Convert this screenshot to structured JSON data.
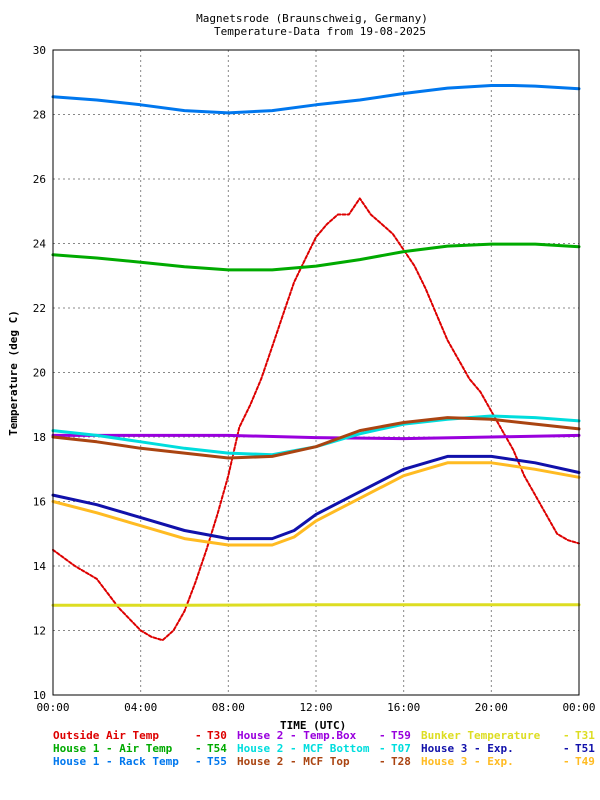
{
  "chart_data": {
    "type": "line",
    "title": "Magnetsrode (Braunschweig, Germany)",
    "subtitle": "Temperature-Data from 19-08-2025",
    "xlabel": "TIME (UTC)",
    "ylabel": "Temperature (deg C)",
    "xlim": [
      0,
      24
    ],
    "ylim": [
      10,
      30
    ],
    "x_ticks": [
      "00:00",
      "04:00",
      "08:00",
      "12:00",
      "16:00",
      "20:00",
      "00:00"
    ],
    "y_ticks": [
      "10",
      "12",
      "14",
      "16",
      "18",
      "20",
      "22",
      "24",
      "26",
      "28",
      "30"
    ],
    "grid": true,
    "x_unit": "hours (UTC)",
    "series": [
      {
        "name": "Outside Air Temp",
        "code": "T30",
        "color": "#dd0000",
        "points": [
          [
            0,
            14.5
          ],
          [
            1,
            14.0
          ],
          [
            2,
            13.6
          ],
          [
            3,
            12.7
          ],
          [
            4,
            12.0
          ],
          [
            4.5,
            11.8
          ],
          [
            5,
            11.7
          ],
          [
            5.5,
            12.0
          ],
          [
            6,
            12.6
          ],
          [
            6.5,
            13.5
          ],
          [
            7,
            14.5
          ],
          [
            7.5,
            15.6
          ],
          [
            8,
            16.8
          ],
          [
            8.5,
            18.3
          ],
          [
            9,
            19.0
          ],
          [
            9.5,
            19.8
          ],
          [
            10,
            20.8
          ],
          [
            10.5,
            21.8
          ],
          [
            11,
            22.8
          ],
          [
            11.5,
            23.5
          ],
          [
            12,
            24.2
          ],
          [
            12.5,
            24.6
          ],
          [
            13,
            24.9
          ],
          [
            13.5,
            24.9
          ],
          [
            14,
            25.4
          ],
          [
            14.5,
            24.9
          ],
          [
            15,
            24.6
          ],
          [
            15.5,
            24.3
          ],
          [
            16,
            23.8
          ],
          [
            16.5,
            23.3
          ],
          [
            17,
            22.6
          ],
          [
            17.5,
            21.8
          ],
          [
            18,
            21.0
          ],
          [
            18.5,
            20.4
          ],
          [
            19,
            19.8
          ],
          [
            19.5,
            19.4
          ],
          [
            20,
            18.8
          ],
          [
            20.5,
            18.2
          ],
          [
            21,
            17.6
          ],
          [
            21.5,
            16.8
          ],
          [
            22,
            16.2
          ],
          [
            22.5,
            15.6
          ],
          [
            23,
            15.0
          ],
          [
            23.5,
            14.8
          ],
          [
            24,
            14.7
          ]
        ]
      },
      {
        "name": "House 1 - Air  Temp",
        "code": "T54",
        "color": "#00aa00",
        "points": [
          [
            0,
            23.65
          ],
          [
            2,
            23.55
          ],
          [
            4,
            23.42
          ],
          [
            6,
            23.28
          ],
          [
            8,
            23.18
          ],
          [
            10,
            23.18
          ],
          [
            12,
            23.3
          ],
          [
            14,
            23.5
          ],
          [
            16,
            23.75
          ],
          [
            18,
            23.92
          ],
          [
            20,
            23.98
          ],
          [
            22,
            23.98
          ],
          [
            24,
            23.9
          ]
        ]
      },
      {
        "name": "House 1 - Rack Temp",
        "code": "T55",
        "color": "#0077ee",
        "points": [
          [
            0,
            28.55
          ],
          [
            2,
            28.45
          ],
          [
            4,
            28.3
          ],
          [
            6,
            28.12
          ],
          [
            8,
            28.05
          ],
          [
            10,
            28.12
          ],
          [
            12,
            28.3
          ],
          [
            14,
            28.45
          ],
          [
            16,
            28.65
          ],
          [
            18,
            28.82
          ],
          [
            20,
            28.9
          ],
          [
            21,
            28.9
          ],
          [
            22,
            28.88
          ],
          [
            24,
            28.8
          ]
        ]
      },
      {
        "name": "House 2 - Temp.Box",
        "code": "T59",
        "color": "#9900dd",
        "points": [
          [
            0,
            18.05
          ],
          [
            4,
            18.05
          ],
          [
            8,
            18.05
          ],
          [
            12,
            17.98
          ],
          [
            16,
            17.95
          ],
          [
            20,
            18.0
          ],
          [
            24,
            18.05
          ]
        ]
      },
      {
        "name": "House 2 - MCF Bottom",
        "code": "T07",
        "color": "#00dddd",
        "points": [
          [
            0,
            18.2
          ],
          [
            2,
            18.05
          ],
          [
            4,
            17.85
          ],
          [
            6,
            17.65
          ],
          [
            8,
            17.5
          ],
          [
            10,
            17.45
          ],
          [
            12,
            17.7
          ],
          [
            14,
            18.1
          ],
          [
            16,
            18.4
          ],
          [
            18,
            18.55
          ],
          [
            20,
            18.65
          ],
          [
            22,
            18.6
          ],
          [
            24,
            18.5
          ]
        ]
      },
      {
        "name": "House 2 - MCF Top",
        "code": "T28",
        "color": "#aa4411",
        "points": [
          [
            0,
            18.0
          ],
          [
            2,
            17.85
          ],
          [
            4,
            17.65
          ],
          [
            6,
            17.5
          ],
          [
            8,
            17.35
          ],
          [
            10,
            17.4
          ],
          [
            12,
            17.7
          ],
          [
            14,
            18.2
          ],
          [
            16,
            18.45
          ],
          [
            18,
            18.6
          ],
          [
            20,
            18.55
          ],
          [
            22,
            18.4
          ],
          [
            24,
            18.25
          ]
        ]
      },
      {
        "name": "House 3 - Exp.",
        "code": "T51",
        "color": "#1111aa",
        "points": [
          [
            0,
            16.2
          ],
          [
            2,
            15.9
          ],
          [
            4,
            15.5
          ],
          [
            6,
            15.1
          ],
          [
            8,
            14.85
          ],
          [
            10,
            14.85
          ],
          [
            11,
            15.1
          ],
          [
            12,
            15.6
          ],
          [
            14,
            16.3
          ],
          [
            16,
            17.0
          ],
          [
            18,
            17.4
          ],
          [
            20,
            17.4
          ],
          [
            22,
            17.2
          ],
          [
            24,
            16.9
          ]
        ]
      },
      {
        "name": "House 3 - Exp.",
        "code": "T49",
        "color": "#ffbb22",
        "points": [
          [
            0,
            16.0
          ],
          [
            2,
            15.65
          ],
          [
            4,
            15.25
          ],
          [
            6,
            14.85
          ],
          [
            8,
            14.65
          ],
          [
            10,
            14.65
          ],
          [
            11,
            14.9
          ],
          [
            12,
            15.4
          ],
          [
            14,
            16.1
          ],
          [
            16,
            16.8
          ],
          [
            18,
            17.2
          ],
          [
            20,
            17.2
          ],
          [
            22,
            17.0
          ],
          [
            24,
            16.75
          ]
        ]
      },
      {
        "name": "Bunker Temperature",
        "code": "T31",
        "color": "#dddd22",
        "points": [
          [
            0,
            12.78
          ],
          [
            6,
            12.78
          ],
          [
            12,
            12.8
          ],
          [
            18,
            12.8
          ],
          [
            24,
            12.8
          ]
        ]
      }
    ]
  },
  "legend": [
    {
      "label": "Outside Air Temp",
      "code": "T30",
      "color": "#dd0000",
      "col": 0,
      "row": 0
    },
    {
      "label": "House 2 - Temp.Box",
      "code": "T59",
      "color": "#9900dd",
      "col": 1,
      "row": 0
    },
    {
      "label": "Bunker Temperature",
      "code": "T31",
      "color": "#dddd22",
      "col": 2,
      "row": 0
    },
    {
      "label": "House 1 - Air  Temp",
      "code": "T54",
      "color": "#00aa00",
      "col": 0,
      "row": 1
    },
    {
      "label": "House 2 - MCF Bottom",
      "code": "T07",
      "color": "#00dddd",
      "col": 1,
      "row": 1
    },
    {
      "label": "House 3 - Exp.",
      "code": "T51",
      "color": "#1111aa",
      "col": 2,
      "row": 1
    },
    {
      "label": "House 1 - Rack Temp",
      "code": "T55",
      "color": "#0077ee",
      "col": 0,
      "row": 2
    },
    {
      "label": "House 2 - MCF Top",
      "code": "T28",
      "color": "#aa4411",
      "col": 1,
      "row": 2
    },
    {
      "label": "House 3 - Exp.",
      "code": "T49",
      "color": "#ffbb22",
      "col": 2,
      "row": 2
    }
  ]
}
